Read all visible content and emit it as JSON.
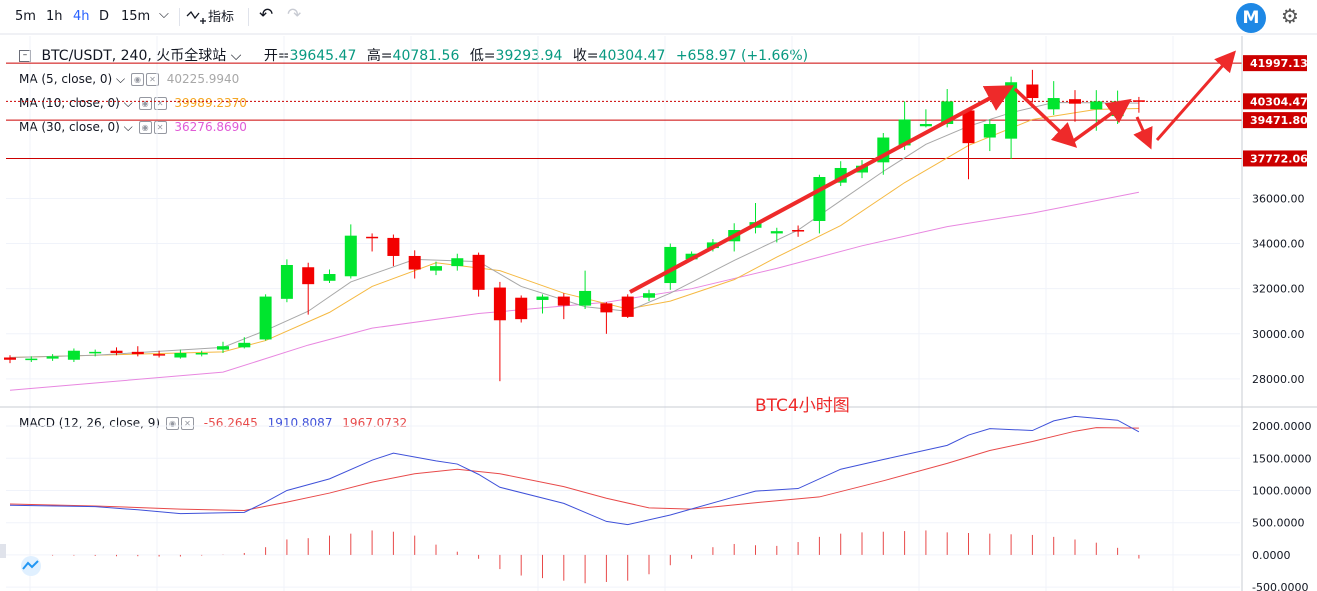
{
  "toolbar": {
    "intervals": [
      "5m",
      "1h",
      "4h",
      "D",
      "15m"
    ],
    "active_interval": "4h",
    "indicators_label": "指标",
    "logo_letter": "M",
    "icons": [
      "chevron-down-icon",
      "indicators-icon",
      "undo-icon",
      "redo-icon",
      "gear-icon"
    ]
  },
  "legend": {
    "symbol": "BTC/USDT, 240, 火币全球站",
    "open_label": "开=",
    "open": "39645.47",
    "high_label": "高=",
    "high": "40781.56",
    "low_label": "低=",
    "low": "39293.94",
    "close_label": "收=",
    "close": "40304.47",
    "change": "+658.97 (+1.66%)",
    "ma5_label": "MA (5, close, 0)",
    "ma5_value": "40225.9940",
    "ma10_label": "MA (10, close, 0)",
    "ma10_value": "39989.2370",
    "ma30_label": "MA (30, close, 0)",
    "ma30_value": "36276.8690",
    "macd_label": "MACD (12, 26, close, 9)",
    "macd_hist": "-56.2645",
    "macd_line": "1910.8087",
    "macd_signal": "1967.0732"
  },
  "annotation_text": "BTC4小时图",
  "colors": {
    "up": "#00e52e",
    "down": "#f20000",
    "ma5": "#a8a8a8",
    "ma10": "#f5b942",
    "ma30": "#e887e0",
    "macd": "#3f51d9",
    "signal": "#e84a4a",
    "level": "#cc0000",
    "annotation": "#ee2a2a",
    "change_green": "#089981"
  },
  "chart_data": [
    {
      "type": "candlestick",
      "y_ticks": [
        28000,
        30000,
        32000,
        34000,
        36000
      ],
      "ylim": [
        26800,
        43200
      ],
      "horizontal_levels": [
        41997.13,
        40304.47,
        39471.8,
        37772.06
      ],
      "candles": [
        [
          28950,
          28850,
          29050,
          28700
        ],
        [
          28850,
          28900,
          29000,
          28750
        ],
        [
          28900,
          29000,
          29100,
          28800
        ],
        [
          28850,
          29250,
          29350,
          28750
        ],
        [
          29150,
          29200,
          29300,
          29000
        ],
        [
          29250,
          29150,
          29400,
          29050
        ],
        [
          29200,
          29100,
          29450,
          29000
        ],
        [
          29100,
          29050,
          29250,
          28950
        ],
        [
          28950,
          29150,
          29300,
          28900
        ],
        [
          29150,
          29150,
          29250,
          29000
        ],
        [
          29300,
          29450,
          29650,
          29150
        ],
        [
          29400,
          29600,
          29850,
          29350
        ],
        [
          29750,
          31650,
          31750,
          29700
        ],
        [
          31550,
          33050,
          33300,
          31400
        ],
        [
          32950,
          32200,
          33150,
          30850
        ],
        [
          32350,
          32650,
          32850,
          32250
        ],
        [
          32550,
          34350,
          34850,
          32450
        ],
        [
          34300,
          34250,
          34450,
          33650
        ],
        [
          34250,
          33450,
          34400,
          33000
        ],
        [
          33450,
          32850,
          33700,
          32450
        ],
        [
          32800,
          33000,
          33200,
          32600
        ],
        [
          33000,
          33350,
          33550,
          32800
        ],
        [
          33500,
          31950,
          33600,
          31650
        ],
        [
          32050,
          30600,
          32300,
          27900
        ],
        [
          31600,
          30650,
          31700,
          30500
        ],
        [
          31500,
          31650,
          31750,
          30900
        ],
        [
          31650,
          31250,
          31800,
          30650
        ],
        [
          31250,
          31900,
          32800,
          31100
        ],
        [
          31350,
          30950,
          31400,
          30000
        ],
        [
          31650,
          30750,
          31750,
          30700
        ],
        [
          31600,
          31800,
          31950,
          31450
        ],
        [
          32250,
          33850,
          34000,
          31950
        ],
        [
          33300,
          33550,
          33650,
          33250
        ],
        [
          33800,
          34050,
          34200,
          33650
        ],
        [
          34100,
          34600,
          34900,
          33650
        ],
        [
          34700,
          34950,
          35800,
          34450
        ],
        [
          34450,
          34550,
          34700,
          34050
        ],
        [
          34600,
          34550,
          34800,
          34300
        ],
        [
          35000,
          36950,
          37050,
          34450
        ],
        [
          36700,
          37350,
          37650,
          36550
        ],
        [
          37150,
          37450,
          37700,
          36900
        ],
        [
          37600,
          38700,
          38900,
          37050
        ],
        [
          38350,
          39500,
          40300,
          38150
        ],
        [
          39200,
          39300,
          39950,
          39150
        ],
        [
          39300,
          40300,
          40850,
          39150
        ],
        [
          39900,
          38450,
          40000,
          36850
        ],
        [
          38700,
          39300,
          39500,
          38100
        ],
        [
          38650,
          41150,
          41400,
          37750
        ],
        [
          41050,
          40450,
          41700,
          40250
        ],
        [
          39950,
          40450,
          41200,
          39700
        ],
        [
          40400,
          40200,
          40800,
          39400
        ],
        [
          39950,
          40300,
          40800,
          39000
        ],
        [
          39650,
          40300,
          40780,
          39300
        ],
        [
          40350,
          40304,
          40500,
          39800
        ]
      ],
      "ma5": [
        [
          0,
          28950
        ],
        [
          4,
          29050
        ],
        [
          10,
          29400
        ],
        [
          12,
          30150
        ],
        [
          14,
          31000
        ],
        [
          16,
          32300
        ],
        [
          19,
          33300
        ],
        [
          22,
          33200
        ],
        [
          24,
          32100
        ],
        [
          27,
          31200
        ],
        [
          29,
          31000
        ],
        [
          31,
          31800
        ],
        [
          34,
          33250
        ],
        [
          37,
          34600
        ],
        [
          39,
          35900
        ],
        [
          41,
          37200
        ],
        [
          43,
          38400
        ],
        [
          45,
          39200
        ],
        [
          47,
          39800
        ],
        [
          49,
          40250
        ],
        [
          53,
          40225
        ]
      ],
      "ma10": [
        [
          0,
          28950
        ],
        [
          10,
          29200
        ],
        [
          12,
          29700
        ],
        [
          15,
          30950
        ],
        [
          17,
          32100
        ],
        [
          20,
          33150
        ],
        [
          23,
          32800
        ],
        [
          26,
          31800
        ],
        [
          29,
          31100
        ],
        [
          31,
          31450
        ],
        [
          34,
          32400
        ],
        [
          36,
          33400
        ],
        [
          39,
          34800
        ],
        [
          42,
          36700
        ],
        [
          45,
          38350
        ],
        [
          48,
          39500
        ],
        [
          51,
          39950
        ],
        [
          53,
          39989
        ]
      ],
      "ma30": [
        [
          0,
          27500
        ],
        [
          10,
          28300
        ],
        [
          14,
          29500
        ],
        [
          17,
          30250
        ],
        [
          22,
          30900
        ],
        [
          28,
          31400
        ],
        [
          32,
          32000
        ],
        [
          36,
          32900
        ],
        [
          40,
          33900
        ],
        [
          44,
          34750
        ],
        [
          48,
          35350
        ],
        [
          53,
          36276
        ]
      ]
    },
    {
      "type": "macd",
      "y_ticks": [
        -500,
        0,
        500,
        1000,
        1500,
        2000
      ],
      "ylim": [
        -560,
        2280
      ],
      "macd": [
        [
          0,
          770
        ],
        [
          4,
          750
        ],
        [
          6,
          700
        ],
        [
          8,
          640
        ],
        [
          11,
          660
        ],
        [
          12,
          820
        ],
        [
          13,
          1000
        ],
        [
          15,
          1180
        ],
        [
          17,
          1470
        ],
        [
          18,
          1580
        ],
        [
          20,
          1460
        ],
        [
          21,
          1410
        ],
        [
          22,
          1250
        ],
        [
          23,
          1050
        ],
        [
          26,
          800
        ],
        [
          28,
          520
        ],
        [
          29,
          470
        ],
        [
          31,
          620
        ],
        [
          34,
          900
        ],
        [
          35,
          990
        ],
        [
          37,
          1030
        ],
        [
          39,
          1330
        ],
        [
          41,
          1480
        ],
        [
          44,
          1700
        ],
        [
          45,
          1860
        ],
        [
          46,
          1960
        ],
        [
          48,
          1930
        ],
        [
          49,
          2080
        ],
        [
          50,
          2150
        ],
        [
          52,
          2090
        ],
        [
          53,
          1910
        ]
      ],
      "signal": [
        [
          0,
          790
        ],
        [
          4,
          760
        ],
        [
          8,
          710
        ],
        [
          11,
          690
        ],
        [
          13,
          820
        ],
        [
          15,
          960
        ],
        [
          17,
          1130
        ],
        [
          19,
          1260
        ],
        [
          21,
          1330
        ],
        [
          23,
          1260
        ],
        [
          26,
          1060
        ],
        [
          28,
          880
        ],
        [
          30,
          730
        ],
        [
          32,
          710
        ],
        [
          35,
          810
        ],
        [
          38,
          900
        ],
        [
          41,
          1150
        ],
        [
          44,
          1420
        ],
        [
          46,
          1620
        ],
        [
          48,
          1760
        ],
        [
          50,
          1920
        ],
        [
          51,
          1975
        ],
        [
          53,
          1967
        ]
      ],
      "histogram": [
        0,
        0,
        -10,
        -10,
        -15,
        -20,
        -20,
        -25,
        -25,
        -10,
        5,
        30,
        120,
        240,
        260,
        300,
        330,
        380,
        360,
        300,
        160,
        50,
        -60,
        -220,
        -320,
        -360,
        -400,
        -440,
        -420,
        -400,
        -300,
        -160,
        -60,
        120,
        170,
        150,
        140,
        200,
        280,
        330,
        350,
        360,
        370,
        380,
        350,
        340,
        330,
        320,
        310,
        280,
        240,
        190,
        110,
        -56
      ]
    }
  ]
}
